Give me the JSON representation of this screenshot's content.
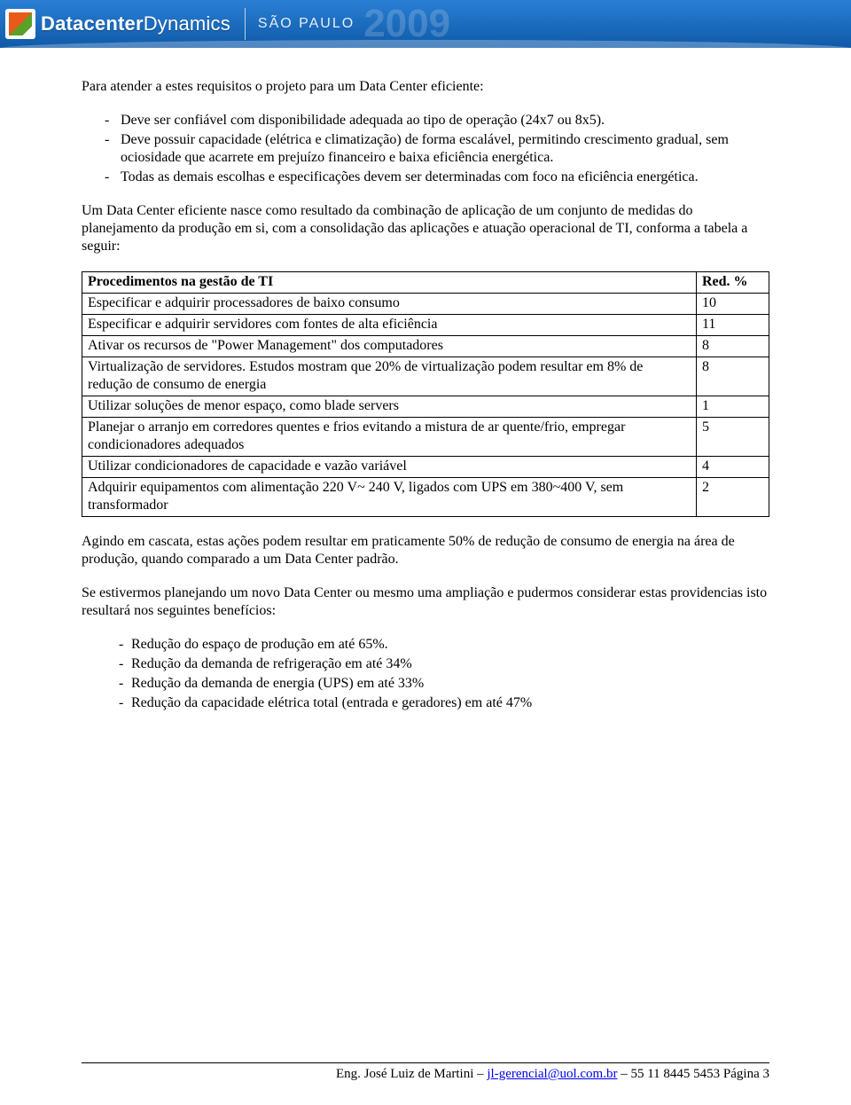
{
  "banner": {
    "brand_bold": "Datacenter",
    "brand_light": "Dynamics",
    "city": "SÃO PAULO",
    "year": "2009",
    "gradient_top": "#2a7fd4",
    "gradient_bottom": "#0f5aa8"
  },
  "body": {
    "intro": "Para atender a estes requisitos o projeto para um Data Center eficiente:",
    "bullets": [
      "Deve ser confiável com disponibilidade adequada ao tipo de operação (24x7 ou 8x5).",
      "Deve possuir capacidade (elétrica e climatização) de forma escalável, permitindo crescimento gradual, sem ociosidade que acarrete em prejuízo financeiro e baixa eficiência energética.",
      "Todas as demais escolhas e especificações devem ser determinadas com foco na eficiência energética."
    ],
    "para2": "Um Data Center eficiente nasce como resultado da combinação de aplicação de um conjunto de medidas do planejamento da produção em si, com a consolidação das aplicações e atuação operacional de TI, conforma a tabela a seguir:",
    "para3": "Agindo em cascata, estas ações podem resultar em praticamente 50% de redução de consumo de energia na área de produção, quando comparado a um Data Center padrão.",
    "para4": "Se estivermos planejando um novo Data Center ou mesmo uma ampliação e pudermos considerar estas providencias isto resultará nos seguintes benefícios:",
    "benefits": [
      "Redução do espaço de produção em até 65%.",
      "Redução da demanda de refrigeração em até 34%",
      "Redução da demanda de energia (UPS) em até 33%",
      "Redução da capacidade elétrica total (entrada e geradores) em até 47%"
    ]
  },
  "table": {
    "header_proc": "Procedimentos na gestão de TI",
    "header_val": "Red. %",
    "rows": [
      {
        "proc": "Especificar e adquirir processadores de baixo consumo",
        "val": "10"
      },
      {
        "proc": "Especificar e adquirir servidores com fontes de alta eficiência",
        "val": "11"
      },
      {
        "proc": "Ativar os recursos de \"Power Management\" dos computadores",
        "val": "8"
      },
      {
        "proc": "Virtualização de servidores. Estudos mostram que 20% de virtualização podem resultar em 8% de redução de consumo de energia",
        "val": "8"
      },
      {
        "proc": "Utilizar soluções de menor espaço, como blade servers",
        "val": "1"
      },
      {
        "proc": "Planejar o arranjo em corredores quentes e frios evitando a mistura de ar quente/frio, empregar condicionadores adequados",
        "val": "5"
      },
      {
        "proc": "Utilizar condicionadores de capacidade e vazão variável",
        "val": "4"
      },
      {
        "proc": "Adquirir equipamentos com alimentação 220 V~ 240 V, ligados com UPS em 380~400 V, sem transformador",
        "val": "2"
      }
    ]
  },
  "footer": {
    "author": "Eng. José Luiz de Martini – ",
    "email": "jl-gerencial@uol.com.br",
    "phone_page": " – 55 11 8445 5453 Página 3"
  }
}
